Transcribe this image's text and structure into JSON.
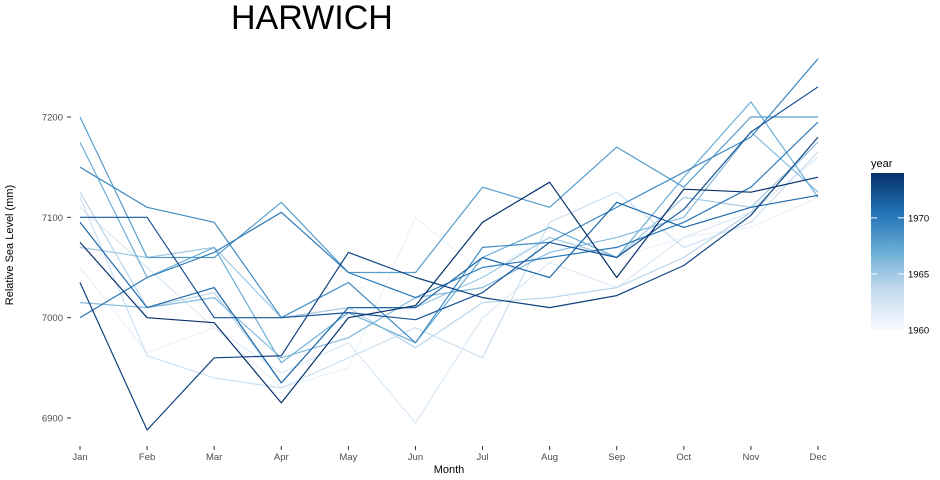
{
  "chart_data": {
    "type": "line",
    "title": "HARWICH",
    "xlabel": "Month",
    "ylabel": "Relative Sea Level (mm)",
    "categories": [
      "Jan",
      "Feb",
      "Mar",
      "Apr",
      "May",
      "Jun",
      "Jul",
      "Aug",
      "Sep",
      "Oct",
      "Nov",
      "Dec"
    ],
    "ylim": [
      6880,
      7260
    ],
    "yticks": [
      6900,
      7000,
      7100,
      7200
    ],
    "grid": false,
    "color_scale": {
      "title": "year",
      "min": 1960,
      "max": 1974,
      "ticks": [
        1960,
        1965,
        1970
      ],
      "low_color": "#f7fbff",
      "high_color": "#08306b"
    },
    "legend_position": "right",
    "series": [
      {
        "year": 1960,
        "values": [
          7065,
          7005,
          7020,
          7065,
          7035,
          7010,
          7035,
          7070,
          7085,
          7095,
          7095,
          7060
        ]
      },
      {
        "year": 1961,
        "values": [
          7050,
          6965,
          6990,
          6930,
          6950,
          7100,
          7045,
          7080,
          7060,
          7080,
          7090,
          7120
        ]
      },
      {
        "year": 1962,
        "values": [
          7110,
          7050,
          6990,
          6945,
          6975,
          6895,
          7000,
          7055,
          7030,
          7080,
          7105,
          7160
        ]
      },
      {
        "year": 1963,
        "values": [
          7120,
          6962,
          6940,
          6930,
          6960,
          6990,
          6960,
          7095,
          7125,
          7070,
          7095,
          7165
        ]
      },
      {
        "year": 1964,
        "values": [
          7125,
          7010,
          7025,
          6935,
          7010,
          6970,
          7015,
          7020,
          7030,
          7060,
          7105,
          7175
        ]
      },
      {
        "year": 1965,
        "values": [
          7070,
          7060,
          7070,
          7000,
          7010,
          7010,
          7040,
          7080,
          7060,
          7120,
          7110,
          7175
        ]
      },
      {
        "year": 1966,
        "values": [
          7015,
          7010,
          7020,
          6960,
          6980,
          7020,
          7030,
          7065,
          7080,
          7100,
          7185,
          7125
        ]
      },
      {
        "year": 1967,
        "values": [
          7175,
          7040,
          7070,
          6955,
          7005,
          6975,
          7060,
          7090,
          7060,
          7140,
          7215,
          7120
        ]
      },
      {
        "year": 1968,
        "values": [
          7200,
          7060,
          7060,
          7115,
          7045,
          7045,
          7130,
          7110,
          7170,
          7130,
          7200,
          7200
        ]
      },
      {
        "year": 1969,
        "values": [
          7150,
          7110,
          7095,
          7000,
          7035,
          6975,
          7070,
          7075,
          7110,
          7145,
          7180,
          7258
        ]
      },
      {
        "year": 1970,
        "values": [
          7000,
          7040,
          7065,
          7105,
          7045,
          7020,
          7050,
          7060,
          7070,
          7095,
          7130,
          7195
        ]
      },
      {
        "year": 1971,
        "values": [
          7095,
          7010,
          7030,
          6935,
          7010,
          7010,
          7060,
          7040,
          7115,
          7090,
          7110,
          7122
        ]
      },
      {
        "year": 1972,
        "values": [
          7100,
          7100,
          7000,
          7000,
          7005,
          6998,
          7025,
          7075,
          7060,
          7108,
          7185,
          7230
        ]
      },
      {
        "year": 1973,
        "values": [
          7035,
          6888,
          6960,
          6962,
          7065,
          7040,
          7020,
          7010,
          7022,
          7052,
          7102,
          7180
        ]
      },
      {
        "year": 1974,
        "values": [
          7075,
          7000,
          6995,
          6915,
          7000,
          7012,
          7095,
          7135,
          7040,
          7128,
          7125,
          7140
        ]
      }
    ]
  }
}
